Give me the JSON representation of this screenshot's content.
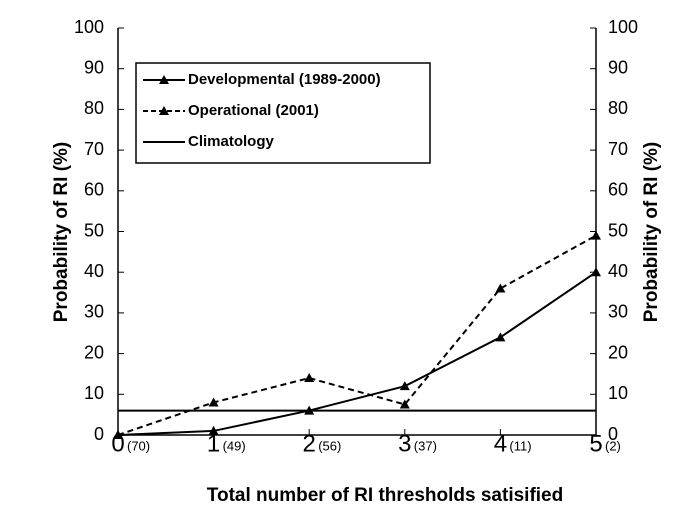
{
  "chart_data": {
    "type": "line",
    "x_label": "Total number of RI thresholds satisified",
    "y_label": "Probability of RI (%)",
    "y2_label": "Probability of RI (%)",
    "x": [
      0,
      1,
      2,
      3,
      4,
      5
    ],
    "sample_sizes": [
      "(70)",
      "(49)",
      "(56)",
      "(37)",
      "(11)",
      "(2)"
    ],
    "series": [
      {
        "name": "Developmental (1989-2000)",
        "color": "#000000",
        "dashed": false,
        "marker": "triangle",
        "values": [
          0,
          1,
          6,
          12,
          24,
          40
        ]
      },
      {
        "name": "Operational (2001)",
        "color": "#000000",
        "dashed": true,
        "marker": "triangle",
        "values": [
          0,
          8,
          14,
          7.5,
          36,
          49
        ]
      },
      {
        "name": "Climatology",
        "color": "#000000",
        "dashed": false,
        "marker": "none",
        "values": [
          6,
          6,
          6,
          6,
          6,
          6
        ]
      }
    ],
    "xlim": [
      0,
      5
    ],
    "xticks": [
      0,
      1,
      2,
      3,
      4,
      5
    ],
    "ylim": [
      0,
      100
    ],
    "yticks": [
      0,
      10,
      20,
      30,
      40,
      50,
      60,
      70,
      80,
      90,
      100
    ],
    "y2lim": [
      0,
      100
    ],
    "y2ticks": [
      0,
      10,
      20,
      30,
      40,
      50,
      60,
      70,
      80,
      90,
      100
    ],
    "legend": "upper left"
  }
}
